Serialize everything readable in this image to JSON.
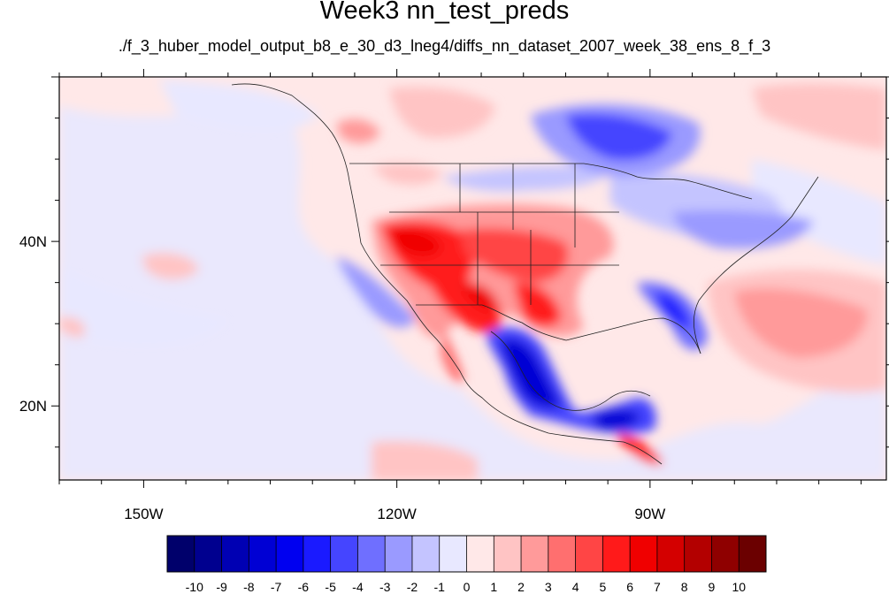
{
  "title": "Week3 nn_test_preds",
  "subtitle": "./f_3_huber_model_output_b8_e_30_d3_lneg4/diffs_nn_dataset_2007_week_38_ens_8_f_3",
  "map": {
    "lon_range": [
      -160,
      -62
    ],
    "lat_range": [
      11,
      60
    ],
    "lon_ticks": [
      {
        "lon": -150,
        "label": "150W"
      },
      {
        "lon": -120,
        "label": "120W"
      },
      {
        "lon": -90,
        "label": "90W"
      }
    ],
    "lat_ticks": [
      {
        "lat": 40,
        "label": "40N"
      },
      {
        "lat": 20,
        "label": "20N"
      }
    ],
    "colorbar": {
      "labels": [
        "-10",
        "-9",
        "-8",
        "-7",
        "-6",
        "-5",
        "-4",
        "-3",
        "-2",
        "-1",
        "0",
        "1",
        "2",
        "3",
        "4",
        "5",
        "6",
        "7",
        "8",
        "9",
        "10"
      ],
      "colors": [
        "#00006b",
        "#00008f",
        "#0000b3",
        "#0000d4",
        "#0000f0",
        "#1a1aff",
        "#4545ff",
        "#6f6fff",
        "#9a9aff",
        "#c4c4ff",
        "#e8e8ff",
        "#ffe8e8",
        "#ffc4c4",
        "#ff9a9a",
        "#ff6f6f",
        "#ff4545",
        "#ff1a1a",
        "#f00000",
        "#d40000",
        "#b30000",
        "#8f0000",
        "#6b0000"
      ]
    }
  }
}
